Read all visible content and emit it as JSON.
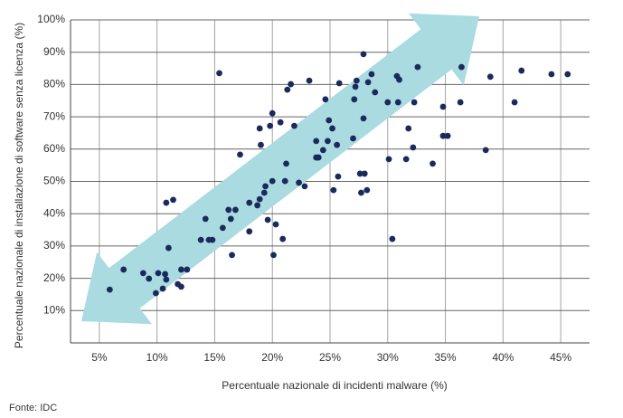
{
  "chart_data": {
    "type": "scatter",
    "x_label": "Percentuale nazionale di incidenti malware (%)",
    "y_label": "Percentuale nazionale di installazione di software senza licenza (%)",
    "source": "Fonte: IDC",
    "color": "#1b2a5c",
    "grid": true,
    "xlim": [
      2.5,
      47.5
    ],
    "ylim": [
      0,
      100
    ],
    "xticks": [
      {
        "value": 5,
        "label": "5%"
      },
      {
        "value": 10,
        "label": "10%"
      },
      {
        "value": 15,
        "label": "15%"
      },
      {
        "value": 20,
        "label": "20%"
      },
      {
        "value": 25,
        "label": "25%"
      },
      {
        "value": 30,
        "label": "30%"
      },
      {
        "value": 35,
        "label": "35%"
      },
      {
        "value": 40,
        "label": "40%"
      },
      {
        "value": 45,
        "label": "45%"
      }
    ],
    "yticks": [
      {
        "value": 10,
        "label": "10%"
      },
      {
        "value": 20,
        "label": "20%"
      },
      {
        "value": 30,
        "label": "30%"
      },
      {
        "value": 40,
        "label": "40%"
      },
      {
        "value": 50,
        "label": "50%"
      },
      {
        "value": 60,
        "label": "60%"
      },
      {
        "value": 70,
        "label": "70%"
      },
      {
        "value": 80,
        "label": "80%"
      },
      {
        "value": 90,
        "label": "90%"
      },
      {
        "value": 100,
        "label": "100%"
      }
    ],
    "x": [
      5.9,
      7.1,
      8.8,
      9.3,
      10.1,
      9.9,
      10.5,
      10.7,
      10.8,
      11.0,
      10.8,
      11.4,
      11.8,
      12.1,
      12.1,
      12.6,
      13.8,
      14.2,
      14.5,
      14.8,
      15.4,
      15.7,
      16.2,
      16.4,
      16.5,
      16.8,
      17.2,
      18.0,
      18.0,
      18.7,
      18.9,
      18.9,
      19.0,
      19.3,
      19.4,
      19.6,
      19.8,
      20.0,
      20.0,
      20.1,
      20.3,
      20.7,
      20.9,
      21.1,
      21.2,
      21.3,
      21.6,
      21.9,
      22.3,
      22.8,
      23.2,
      23.8,
      23.8,
      24.0,
      24.4,
      24.6,
      24.8,
      24.9,
      25.2,
      25.3,
      25.6,
      25.7,
      25.8,
      27.0,
      27.1,
      27.2,
      27.3,
      27.6,
      27.7,
      27.9,
      27.9,
      28.0,
      28.2,
      28.3,
      28.6,
      28.9,
      30.0,
      30.1,
      30.4,
      30.8,
      31.0,
      30.9,
      31.6,
      31.8,
      32.2,
      32.3,
      32.6,
      33.9,
      34.8,
      34.8,
      35.2,
      36.3,
      36.4,
      38.5,
      38.9,
      41.0,
      41.6,
      44.2,
      45.6
    ],
    "values": [
      16.5,
      22.7,
      21.6,
      19.9,
      21.6,
      15.4,
      16.8,
      21.3,
      19.6,
      29.4,
      43.4,
      44.3,
      18.2,
      17.4,
      22.7,
      22.7,
      31.9,
      38.4,
      31.9,
      31.9,
      83.5,
      35.6,
      41.2,
      38.4,
      27.2,
      41.2,
      58.3,
      43.4,
      34.5,
      42.6,
      44.5,
      66.4,
      61.3,
      46.5,
      48.5,
      38.1,
      67.2,
      71.1,
      50.1,
      27.2,
      36.7,
      68.3,
      32.2,
      50.1,
      55.5,
      78.4,
      80.1,
      67.2,
      49.6,
      48.5,
      81.2,
      62.5,
      57.4,
      57.4,
      59.7,
      75.4,
      62.5,
      68.9,
      66.4,
      47.3,
      61.3,
      51.5,
      80.4,
      63.3,
      75.4,
      79.3,
      81.2,
      52.4,
      46.5,
      69.5,
      89.4,
      52.4,
      47.3,
      80.7,
      83.2,
      77.6,
      74.5,
      56.9,
      32.2,
      82.6,
      81.5,
      74.5,
      56.9,
      66.4,
      60.5,
      74.5,
      85.4,
      55.5,
      73.1,
      64.1,
      64.1,
      74.5,
      85.4,
      59.7,
      82.4,
      74.5,
      84.3,
      83.2,
      83.2
    ]
  }
}
